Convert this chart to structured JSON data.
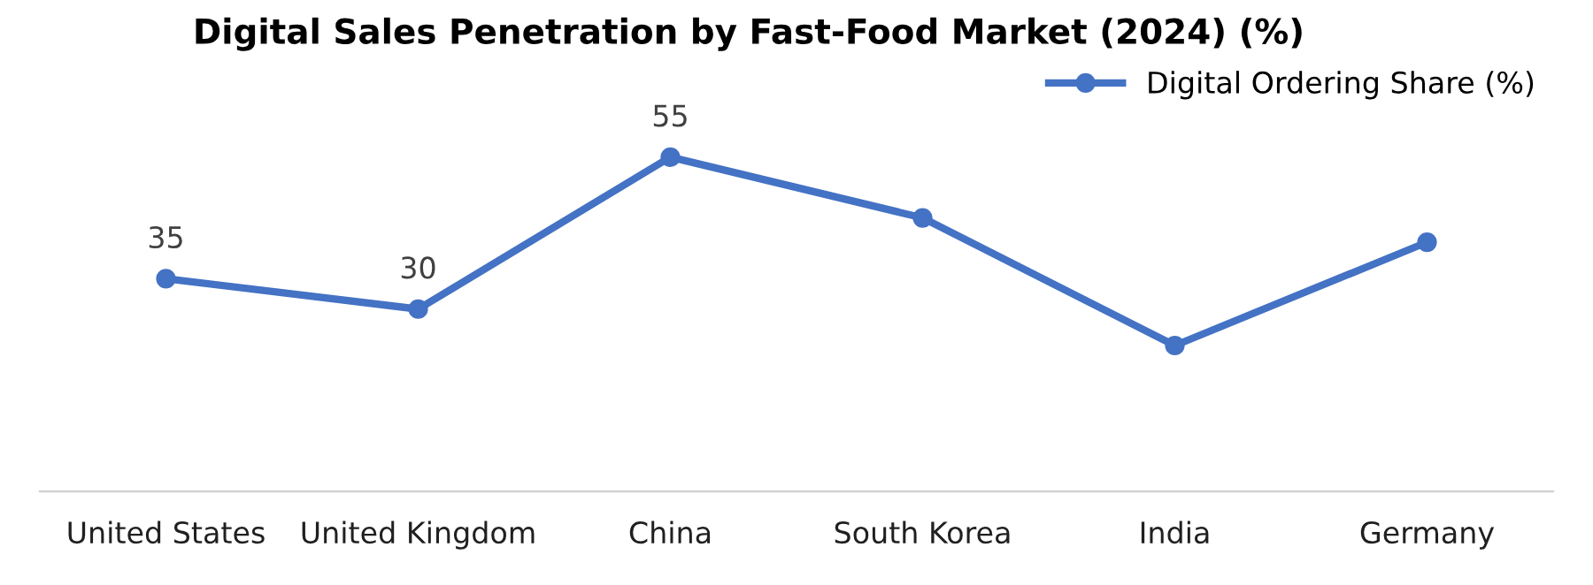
{
  "chart_data": {
    "type": "line",
    "title": "Digital Sales Penetration by Fast-Food Market (2024) (%)",
    "categories": [
      "United States",
      "United Kingdom",
      "China",
      "South Korea",
      "India",
      "Germany"
    ],
    "series": [
      {
        "name": "Digital Ordering Share (%)",
        "color": "#4472c4",
        "values": [
          35,
          30,
          55,
          45,
          24,
          41
        ],
        "value_labels": [
          "35",
          "30",
          "55",
          null,
          null,
          null
        ]
      }
    ],
    "marker": "circle",
    "line_style": "solid",
    "legend": "top right",
    "grid": false
  }
}
